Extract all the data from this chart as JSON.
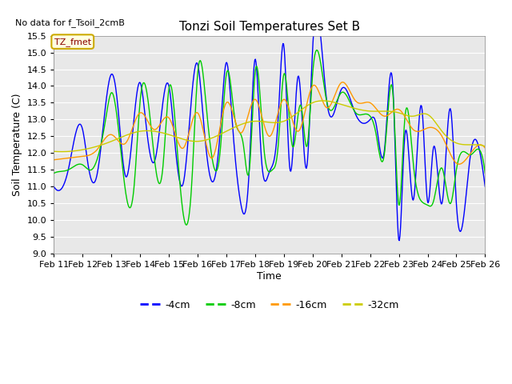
{
  "title": "Tonzi Soil Temperatures Set B",
  "xlabel": "Time",
  "ylabel": "Soil Temperature (C)",
  "no_data_text": "No data for f_Tsoil_2cmB",
  "legend_label": "TZ_fmet",
  "ylim": [
    9.0,
    15.5
  ],
  "yticks": [
    9.0,
    9.5,
    10.0,
    10.5,
    11.0,
    11.5,
    12.0,
    12.5,
    13.0,
    13.5,
    14.0,
    14.5,
    15.0,
    15.5
  ],
  "colors": {
    "4cm": "#0000ff",
    "8cm": "#00cc00",
    "16cm": "#ff9900",
    "32cm": "#cccc00"
  },
  "plot_bg_color": "#e8e8e8",
  "xtick_labels": [
    "Feb 11",
    "Feb 12",
    "Feb 13",
    "Feb 14",
    "Feb 15",
    "Feb 16",
    "Feb 17",
    "Feb 18",
    "Feb 19",
    "Feb 20",
    "Feb 21",
    "Feb 22",
    "Feb 23",
    "Feb 24",
    "Feb 25",
    "Feb 26"
  ],
  "n_days": 15,
  "pts_per_day": 48
}
